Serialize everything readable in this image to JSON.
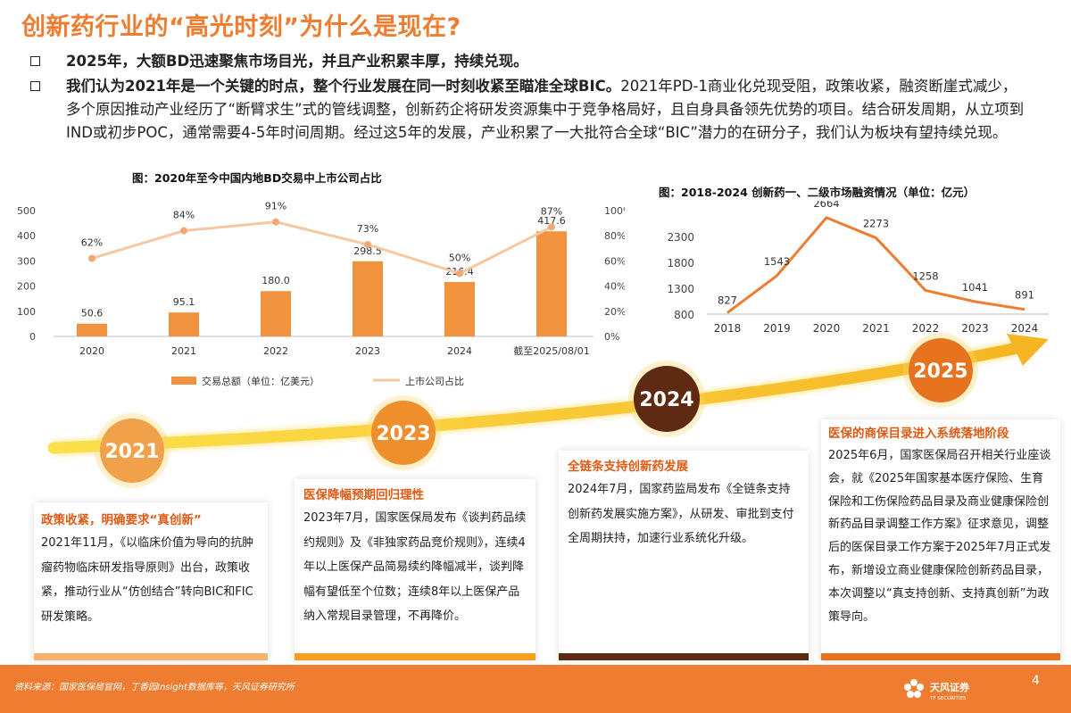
{
  "title": "创新药行业的“高光时刻”为什么是现在?",
  "bullets": [
    {
      "text": "2025年，大额BD迅速聚焦市场目光，并且产业积累丰厚，持续兑现。"
    },
    {
      "bold": "我们认为2021年是一个关键的时点，整个行业发展在同一时刻收紧至瞄准全球BIC。",
      "rest": "2021年PD-1商业化兑现受阻，政策收紧，融资断崖式减少，多个原因推动产业经历了“断臂求生”式的管线调整，创新药企将研发资源集中于竞争格局好，且自身具备领先优势的项目。结合研发周期，从立项到IND或初步POC，通常需要4-5年时间周期。经过这5年的发展，产业积累了一大批符合全球“BIC”潜力的在研分子，我们认为板块有望持续兑现。"
    }
  ],
  "chart_data": [
    {
      "type": "bar",
      "title": "图：2020年至今中国内地BD交易中上市公司占比",
      "categories": [
        "2020",
        "2021",
        "2022",
        "2023",
        "2024",
        "截至2025/08/01"
      ],
      "series": [
        {
          "name": "交易总额（单位：亿美元）",
          "type": "bar",
          "axis": "left",
          "values": [
            50.6,
            95.1,
            180.0,
            298.5,
            216.4,
            417.6
          ],
          "labels": [
            "50.6",
            "95.1",
            "180.0",
            "298.5",
            "216.4",
            "417.6"
          ],
          "color": "#f0923e"
        },
        {
          "name": "上市公司占比",
          "type": "line",
          "axis": "right",
          "values": [
            62,
            84,
            91,
            73,
            50,
            87
          ],
          "labels": [
            "62%",
            "84%",
            "91%",
            "73%",
            "50%",
            "87%"
          ],
          "color": "#f7c7a0"
        }
      ],
      "yleft": {
        "min": 0,
        "max": 500,
        "ticks": [
          "0",
          "100",
          "200",
          "300",
          "400",
          "500"
        ]
      },
      "yright": {
        "min": 0,
        "max": 100,
        "ticks": [
          "0%",
          "20%",
          "40%",
          "60%",
          "80%",
          "100%"
        ]
      },
      "legend": "bottom"
    },
    {
      "type": "line",
      "title": "图：2018-2024 创新药一、二级市场融资情况（单位：亿元）",
      "categories": [
        "2018",
        "2019",
        "2020",
        "2021",
        "2022",
        "2023",
        "2024"
      ],
      "series": [
        {
          "name": "",
          "values": [
            827,
            1543,
            2664,
            2273,
            1258,
            1041,
            891
          ],
          "labels": [
            "827",
            "1543",
            "2664",
            "2273",
            "1258",
            "1041",
            "891"
          ],
          "color": "#ee7d31"
        }
      ],
      "yaxis": {
        "min": 800,
        "max": 2800,
        "ticks": [
          "800",
          "1300",
          "1800",
          "2300"
        ]
      },
      "grid": false
    }
  ],
  "timeline": {
    "years": [
      "2021",
      "2023",
      "2024",
      "2025"
    ],
    "colors": {
      "2021": "#f2a14b",
      "2023": "#ef8f2c",
      "2024": "#5e2a12",
      "2025": "#e8731f"
    },
    "cards": [
      {
        "head": "政策收紧，明确要求“真创新”",
        "body": "2021年11月，《以临床价值为导向的抗肿瘤药物临床研发指导原则》出台，政策收紧，推动行业从“仿创结合”转向BIC和FIC研发策略。",
        "bar": "#f4b36e"
      },
      {
        "head": "医保降幅预期回归理性",
        "body": "2023年7月，国家医保局发布《谈判药品续约规则》及《非独家药品竞价规则》，连续4年以上医保产品简易续约降幅减半，谈判降幅有望低至个位数；连续8年以上医保产品纳入常规目录管理，不再降价。",
        "bar": "#f5a024"
      },
      {
        "head": "全链条支持创新药发展",
        "body": "2024年7月，国家药监局发布《全链条支持创新药发展实施方案》，从研发、审批到支付全周期扶持，加速行业系统化升级。",
        "bar": "#5e2a12"
      },
      {
        "head": "医保的商保目录进入系统落地阶段",
        "body": "2025年6月，国家医保局召开相关行业座谈会，就《2025年国家基本医疗保险、生育保险和工伤保险药品目录及商业健康保险创新药品目录调整工作方案》征求意见，调整后的医保目录工作方案于2025年7月正式发布，新增设立商业健康保险创新药品目录，本次调整以“真支持创新、支持真创新”为政策导向。",
        "bar": "#e8731f"
      }
    ]
  },
  "footer": {
    "source": "资料来源：国家医保局官网，丁香园Insight数据库等，天风证券研究所",
    "brand": "天风证券",
    "brand_en": "TF SECURITIES",
    "page": "4"
  }
}
